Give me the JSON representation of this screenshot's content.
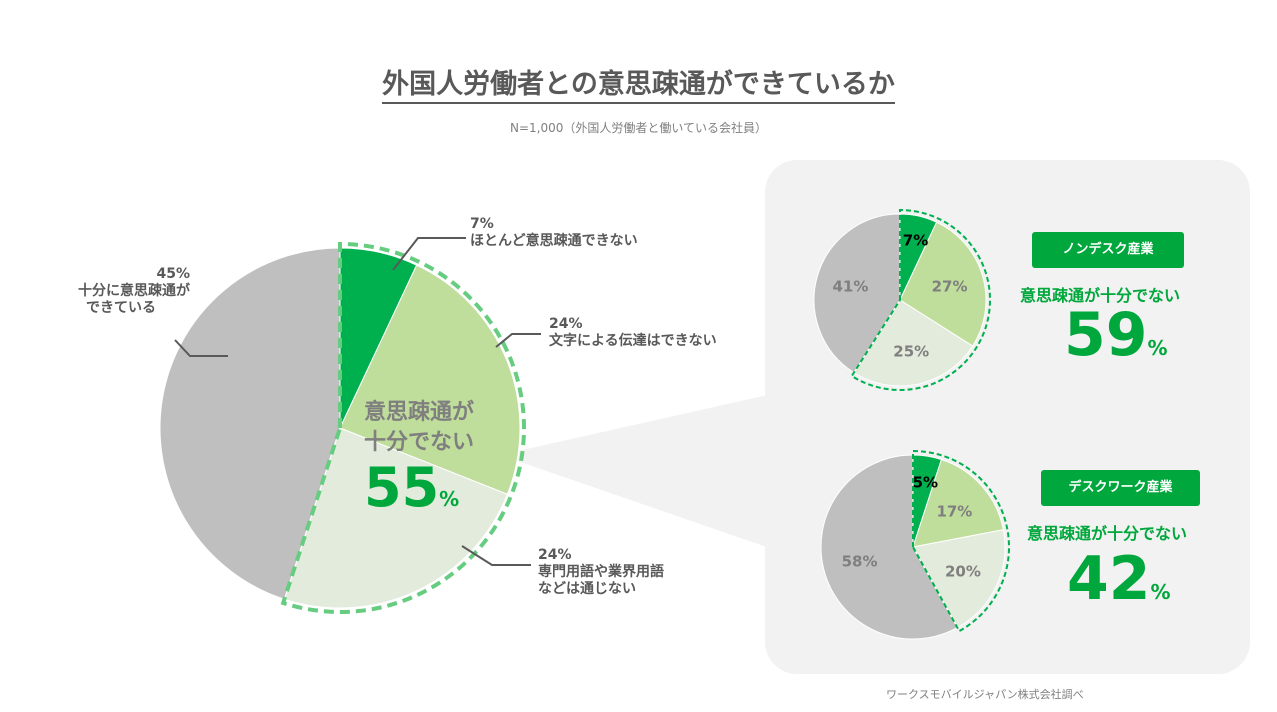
{
  "title": "外国人労働者との意思疎通ができているか",
  "subtitle": "N=1,000（外国人労働者と働いている会社員）",
  "source": "ワークスモバイルジャパン株式会社調べ",
  "colors": {
    "dark_green": "#00b04f",
    "light_green": "#bfdd9b",
    "pale_green": "#e2ebdc",
    "gray": "#bfbfbf",
    "accent": "#00a73c"
  },
  "chart_data": [
    {
      "type": "pie",
      "name": "全体",
      "slices": [
        {
          "label": "ほとんど意思疎通できない",
          "value": 7
        },
        {
          "label": "文字による伝達はできない",
          "value": 24
        },
        {
          "label": "専門用語や業界用語などは通じない",
          "value": 24
        },
        {
          "label": "十分に意思疎通ができている",
          "value": 45
        }
      ],
      "callout_text": [
        "意思疎通が",
        "十分でない"
      ],
      "callout_value": "55",
      "callout_unit": "%"
    },
    {
      "type": "pie",
      "name": "ノンデスク産業",
      "slices": [
        {
          "label": "ほとんど意思疎通できない",
          "value": 7
        },
        {
          "label": "文字による伝達はできない",
          "value": 27
        },
        {
          "label": "専門用語や業界用語などは通じない",
          "value": 25
        },
        {
          "label": "十分に意思疎通ができている",
          "value": 41
        }
      ],
      "callout_text": "意思疎通が十分でない",
      "callout_value": "59",
      "callout_unit": "%"
    },
    {
      "type": "pie",
      "name": "デスクワーク産業",
      "slices": [
        {
          "label": "ほとんど意思疎通できない",
          "value": 5
        },
        {
          "label": "文字による伝達はできない",
          "value": 17
        },
        {
          "label": "専門用語や業界用語などは通じない",
          "value": 20
        },
        {
          "label": "十分に意思疎通ができている",
          "value": 58
        }
      ],
      "callout_text": "意思疎通が十分でない",
      "callout_value": "42",
      "callout_unit": "%"
    }
  ],
  "main_labels": {
    "s0": {
      "pct": "7%",
      "text": "ほとんど意思疎通できない"
    },
    "s1": {
      "pct": "24%",
      "text": "文字による伝達はできない"
    },
    "s2": {
      "pct": "24%",
      "text1": "専門用語や業界用語",
      "text2": "などは通じない"
    },
    "s3": {
      "pct": "45%",
      "text1": "十分に意思疎通が",
      "text2": "できている"
    }
  },
  "small_labels": {
    "nondesk": [
      "7%",
      "27%",
      "25%",
      "41%"
    ],
    "desk": [
      "5%",
      "17%",
      "20%",
      "58%"
    ]
  }
}
